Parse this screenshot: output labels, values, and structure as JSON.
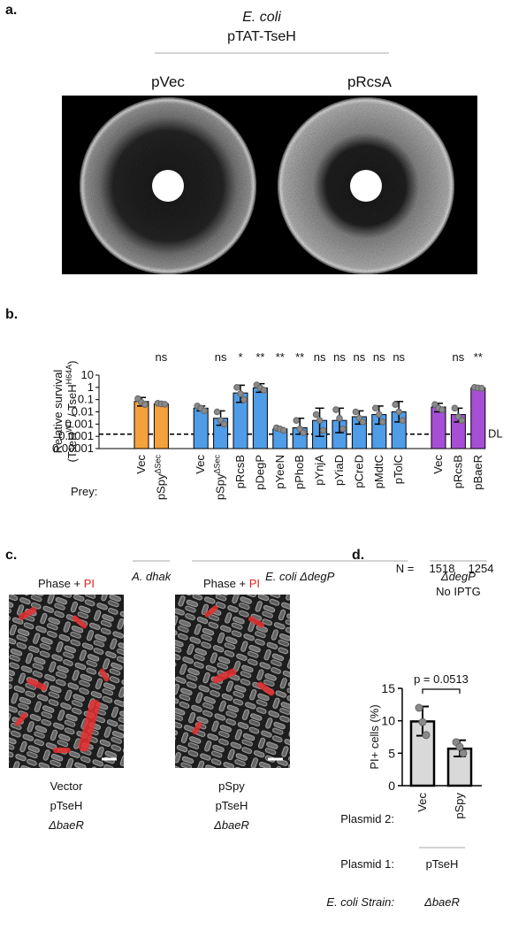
{
  "panel_a": {
    "label": "a.",
    "title_lines": [
      "E. coli",
      "pTAT-TseH"
    ],
    "columns": [
      "pVec",
      "pRcsA"
    ]
  },
  "panel_c": {
    "label": "c.",
    "image_title": "Phase + ",
    "image_title_red": "PI",
    "captions": [
      [
        "Vector",
        "pTseH",
        "ΔbaeR"
      ],
      [
        "pSpy",
        "pTseH",
        "ΔbaeR"
      ]
    ]
  },
  "chart_data": [
    {
      "type": "bar",
      "panel_label": "b.",
      "log_scale": true,
      "ylabel": [
        "Relative survival",
        "(TseH",
        "WT",
        " / TseH",
        "H64A",
        ")"
      ],
      "ylim": [
        1e-05,
        10
      ],
      "yticks": [
        10,
        1,
        0.1,
        0.01,
        0.001,
        0.0001,
        1e-05
      ],
      "detection_limit": 0.00015,
      "detection_label": "DL",
      "row_label": "Prey:",
      "groups": [
        {
          "name": [
            "A. dhak"
          ],
          "color": "#f5a13d",
          "categories": [
            "Vec",
            "pSpy"
          ],
          "superscripts": [
            null,
            "ΔSec"
          ],
          "values": [
            0.07,
            0.045
          ],
          "err_low": [
            0.03,
            0.04
          ],
          "err_high": [
            0.15,
            0.05
          ],
          "points": [
            [
              0.12,
              0.06,
              0.04
            ],
            [
              0.05,
              0.045,
              0.042
            ]
          ],
          "significance": [
            null,
            "ns"
          ]
        },
        {
          "name": [
            "E. coli ΔdegP"
          ],
          "color": "#4f9de8",
          "categories": [
            "Vec",
            "pSpy",
            "pRcsB",
            "pDegP",
            "pYeeN",
            "pPhoB",
            "pYnjA",
            "pYiaD",
            "pCreD",
            "pMdtC",
            "pTolC"
          ],
          "superscripts": [
            null,
            "ΔSec",
            null,
            null,
            null,
            null,
            null,
            null,
            null,
            null,
            null
          ],
          "values": [
            0.02,
            0.003,
            0.35,
            0.9,
            0.0004,
            0.0005,
            0.002,
            0.002,
            0.004,
            0.006,
            0.01
          ],
          "err_low": [
            0.012,
            0.0008,
            0.06,
            0.4,
            0.0003,
            0.00015,
            0.0001,
            0.0002,
            0.001,
            0.001,
            0.0015
          ],
          "err_high": [
            0.03,
            0.012,
            1.5,
            2,
            0.0005,
            0.003,
            0.02,
            0.02,
            0.012,
            0.03,
            0.07
          ],
          "points": [
            [
              0.03,
              0.02,
              0.012
            ],
            [
              0.01,
              0.002,
              0.001
            ],
            [
              1,
              0.3,
              0.1
            ],
            [
              1.6,
              0.9,
              0.6
            ],
            [
              0.0005,
              0.0004,
              0.0003
            ],
            [
              0.002,
              0.0004,
              0.0002
            ],
            [
              0.006,
              0.002,
              0.0003
            ],
            [
              0.015,
              0.003,
              0.0004
            ],
            [
              0.01,
              0.003,
              0.0015
            ],
            [
              0.02,
              0.006,
              0.0015
            ],
            [
              0.04,
              0.01,
              0.002
            ]
          ],
          "significance": [
            null,
            "ns",
            "*",
            "**",
            "**",
            "**",
            "ns",
            "ns",
            "ns",
            "ns",
            "ns"
          ]
        },
        {
          "name": [
            "ΔdegP",
            "No IPTG"
          ],
          "color": "#a64fd6",
          "categories": [
            "Vec",
            "pRcsB",
            "pBaeR"
          ],
          "superscripts": [
            null,
            null,
            null
          ],
          "values": [
            0.025,
            0.006,
            0.9
          ],
          "err_low": [
            0.01,
            0.0015,
            0.8
          ],
          "err_high": [
            0.05,
            0.02,
            1
          ],
          "points": [
            [
              0.04,
              0.02,
              0.015
            ],
            [
              0.02,
              0.004,
              0.002
            ],
            [
              1,
              0.9,
              0.85
            ]
          ],
          "significance": [
            null,
            "ns",
            "**"
          ]
        }
      ]
    },
    {
      "type": "bar",
      "panel_label": "d.",
      "ylabel": "PI+ cells (%)",
      "ylim": [
        0,
        15
      ],
      "yticks": [
        0,
        5,
        10,
        15
      ],
      "color": "#d9d9d9",
      "categories": [
        "Vec",
        "pSpy"
      ],
      "values": [
        9.9,
        5.7
      ],
      "err_low": [
        7.7,
        4.5
      ],
      "err_high": [
        12.2,
        7.0
      ],
      "points": [
        [
          12,
          9.8,
          7.8
        ],
        [
          6.7,
          6.0,
          5.0
        ]
      ],
      "n_label": "N =",
      "n_values": [
        1518,
        1254
      ],
      "p_label": "p = 0.0513",
      "row_labels": [
        "Plasmid 2:",
        "Plasmid 1:",
        "E. coli Strain:"
      ],
      "plasmid_1": "pTseH",
      "strain": "ΔbaeR"
    }
  ]
}
